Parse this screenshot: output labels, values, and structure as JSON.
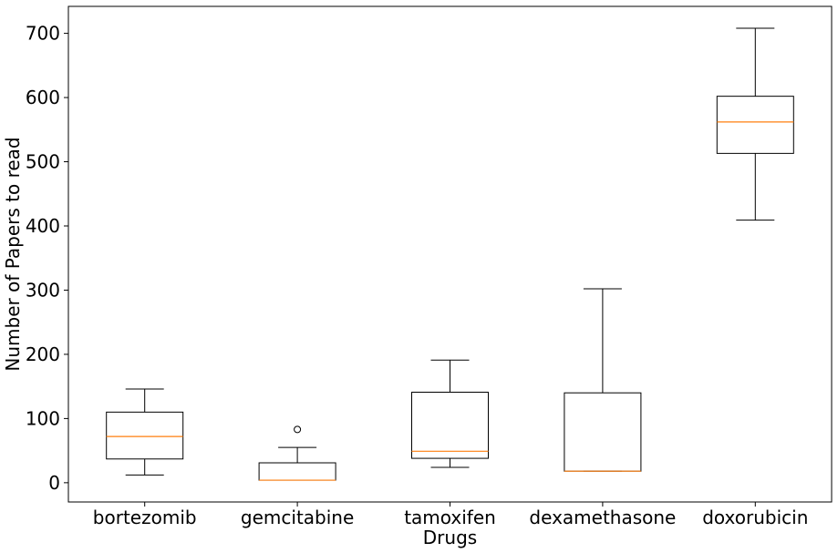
{
  "chart_data": {
    "type": "box",
    "xlabel": "Drugs",
    "ylabel": "Number of Papers to read",
    "ylim": [
      -30,
      742
    ],
    "yticks": [
      0,
      100,
      200,
      300,
      400,
      500,
      600,
      700
    ],
    "categories": [
      "bortezomib",
      "gemcitabine",
      "tamoxifen",
      "dexamethasone",
      "doxorubicin"
    ],
    "boxes": [
      {
        "category": "bortezomib",
        "whisker_low": 12,
        "q1": 37,
        "median": 72,
        "q3": 110,
        "whisker_high": 146,
        "outliers": []
      },
      {
        "category": "gemcitabine",
        "whisker_low": 4,
        "q1": 4,
        "median": 4,
        "q3": 31,
        "whisker_high": 55,
        "outliers": [
          83
        ]
      },
      {
        "category": "tamoxifen",
        "whisker_low": 24,
        "q1": 38,
        "median": 49,
        "q3": 141,
        "whisker_high": 191,
        "outliers": []
      },
      {
        "category": "dexamethasone",
        "whisker_low": 18,
        "q1": 18,
        "median": 18,
        "q3": 140,
        "whisker_high": 302,
        "outliers": []
      },
      {
        "category": "doxorubicin",
        "whisker_low": 409,
        "q1": 513,
        "median": 562,
        "q3": 602,
        "whisker_high": 708,
        "outliers": []
      }
    ],
    "colors": {
      "box": "#000000",
      "median": "#ff7f0e",
      "axis": "#000000"
    },
    "grid": false
  }
}
